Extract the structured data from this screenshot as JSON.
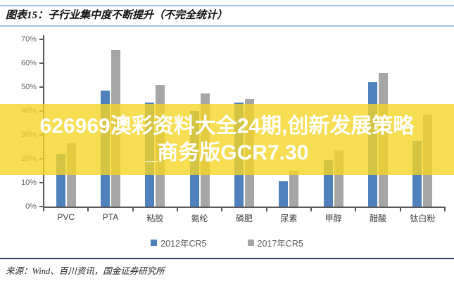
{
  "header": {
    "label": "图表15：",
    "title": "子行业集中度不断提升（不完全统计）"
  },
  "chart_data": {
    "type": "bar",
    "categories": [
      "PVC",
      "PTA",
      "粘胶",
      "氨纶",
      "磷肥",
      "尿素",
      "甲醇",
      "醋酸",
      "钛白粉"
    ],
    "series": [
      {
        "name": "2012年CR5",
        "color": "#4F81BD",
        "values": [
          22,
          48.5,
          43.5,
          40,
          43.5,
          10.5,
          19.5,
          52,
          27.5
        ]
      },
      {
        "name": "2017年CR5",
        "color": "#A6A6A6",
        "values": [
          26.5,
          65.5,
          51,
          47.5,
          45,
          15,
          23.5,
          56,
          38.5
        ]
      }
    ],
    "title": "",
    "xlabel": "",
    "ylabel": "",
    "ylim": [
      0,
      70
    ],
    "ytick_step": 10,
    "ytick_suffix": "%",
    "grid": false,
    "legend_position": "bottom"
  },
  "watermark": {
    "line1": "626969澳彩资料大全24期,创新发展策略",
    "line2": "_商务版GCR7.30",
    "bg_color": "#F4D426",
    "bg_opacity": 0.8,
    "text_color": "#FFFFFF"
  },
  "footer": {
    "source": "来源：Wind、百川资讯，国金证券研究所"
  }
}
